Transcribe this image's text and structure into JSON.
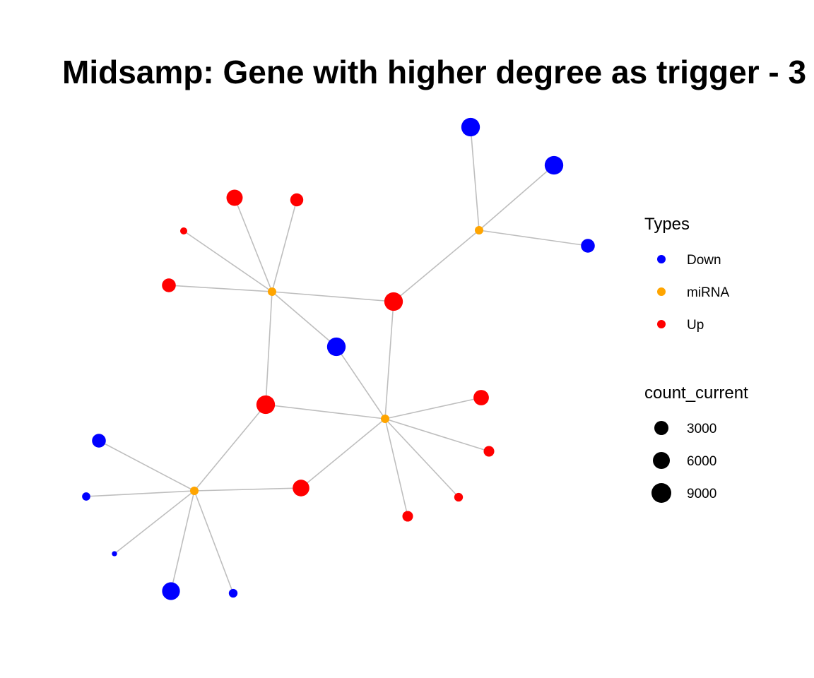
{
  "title": "Midsamp: Gene with higher degree as trigger - 3",
  "colors": {
    "Down": "#0000ff",
    "miRNA": "#ffa500",
    "Up": "#ff0000",
    "edge": "#bebebe"
  },
  "legend": {
    "types": {
      "title": "Types",
      "entries": [
        {
          "label": "Down",
          "type": "Down"
        },
        {
          "label": "miRNA",
          "type": "miRNA"
        },
        {
          "label": "Up",
          "type": "Up"
        }
      ]
    },
    "size": {
      "title": "count_current",
      "entries": [
        {
          "label": "3000",
          "value": 3000
        },
        {
          "label": "6000",
          "value": 6000
        },
        {
          "label": "9000",
          "value": 9000
        }
      ]
    }
  },
  "nodes": [
    {
      "id": "m1",
      "type": "miRNA"
    },
    {
      "id": "m2",
      "type": "miRNA"
    },
    {
      "id": "m3",
      "type": "miRNA"
    },
    {
      "id": "m4",
      "type": "miRNA"
    },
    {
      "id": "d1",
      "type": "Down",
      "count": 9000
    },
    {
      "id": "d2",
      "type": "Down",
      "count": 9000
    },
    {
      "id": "d3",
      "type": "Down",
      "count": 6000
    },
    {
      "id": "d4",
      "type": "Down",
      "count": 9000
    },
    {
      "id": "d5",
      "type": "Down",
      "count": 6000
    },
    {
      "id": "d6",
      "type": "Down",
      "count": 2500
    },
    {
      "id": "d7",
      "type": "Down",
      "count": 600
    },
    {
      "id": "d8",
      "type": "Down",
      "count": 8500
    },
    {
      "id": "d9",
      "type": "Down",
      "count": 2800
    },
    {
      "id": "u1",
      "type": "Up",
      "count": 7500
    },
    {
      "id": "u2",
      "type": "Up",
      "count": 5500
    },
    {
      "id": "u3",
      "type": "Up",
      "count": 1800
    },
    {
      "id": "u4",
      "type": "Up",
      "count": 6000
    },
    {
      "id": "u5",
      "type": "Up",
      "count": 9000
    },
    {
      "id": "u6",
      "type": "Up",
      "count": 9000
    },
    {
      "id": "u7",
      "type": "Up",
      "count": 7000
    },
    {
      "id": "u8",
      "type": "Up",
      "count": 4000
    },
    {
      "id": "u9",
      "type": "Up",
      "count": 2800
    },
    {
      "id": "u10",
      "type": "Up",
      "count": 4000
    },
    {
      "id": "u11",
      "type": "Up",
      "count": 7800
    }
  ],
  "edges": [
    [
      "m1",
      "d1"
    ],
    [
      "m1",
      "d2"
    ],
    [
      "m1",
      "d3"
    ],
    [
      "m1",
      "u5"
    ],
    [
      "m2",
      "u1"
    ],
    [
      "m2",
      "u2"
    ],
    [
      "m2",
      "u3"
    ],
    [
      "m2",
      "u4"
    ],
    [
      "m2",
      "u5"
    ],
    [
      "m2",
      "d4"
    ],
    [
      "m2",
      "u6"
    ],
    [
      "m3",
      "d4"
    ],
    [
      "m3",
      "u5"
    ],
    [
      "m3",
      "u6"
    ],
    [
      "m3",
      "u7"
    ],
    [
      "m3",
      "u8"
    ],
    [
      "m3",
      "u9"
    ],
    [
      "m3",
      "u10"
    ],
    [
      "m3",
      "u11"
    ],
    [
      "m4",
      "u6"
    ],
    [
      "m4",
      "d5"
    ],
    [
      "m4",
      "d6"
    ],
    [
      "m4",
      "d7"
    ],
    [
      "m4",
      "d8"
    ],
    [
      "m4",
      "d9"
    ],
    [
      "m4",
      "u11"
    ]
  ]
}
